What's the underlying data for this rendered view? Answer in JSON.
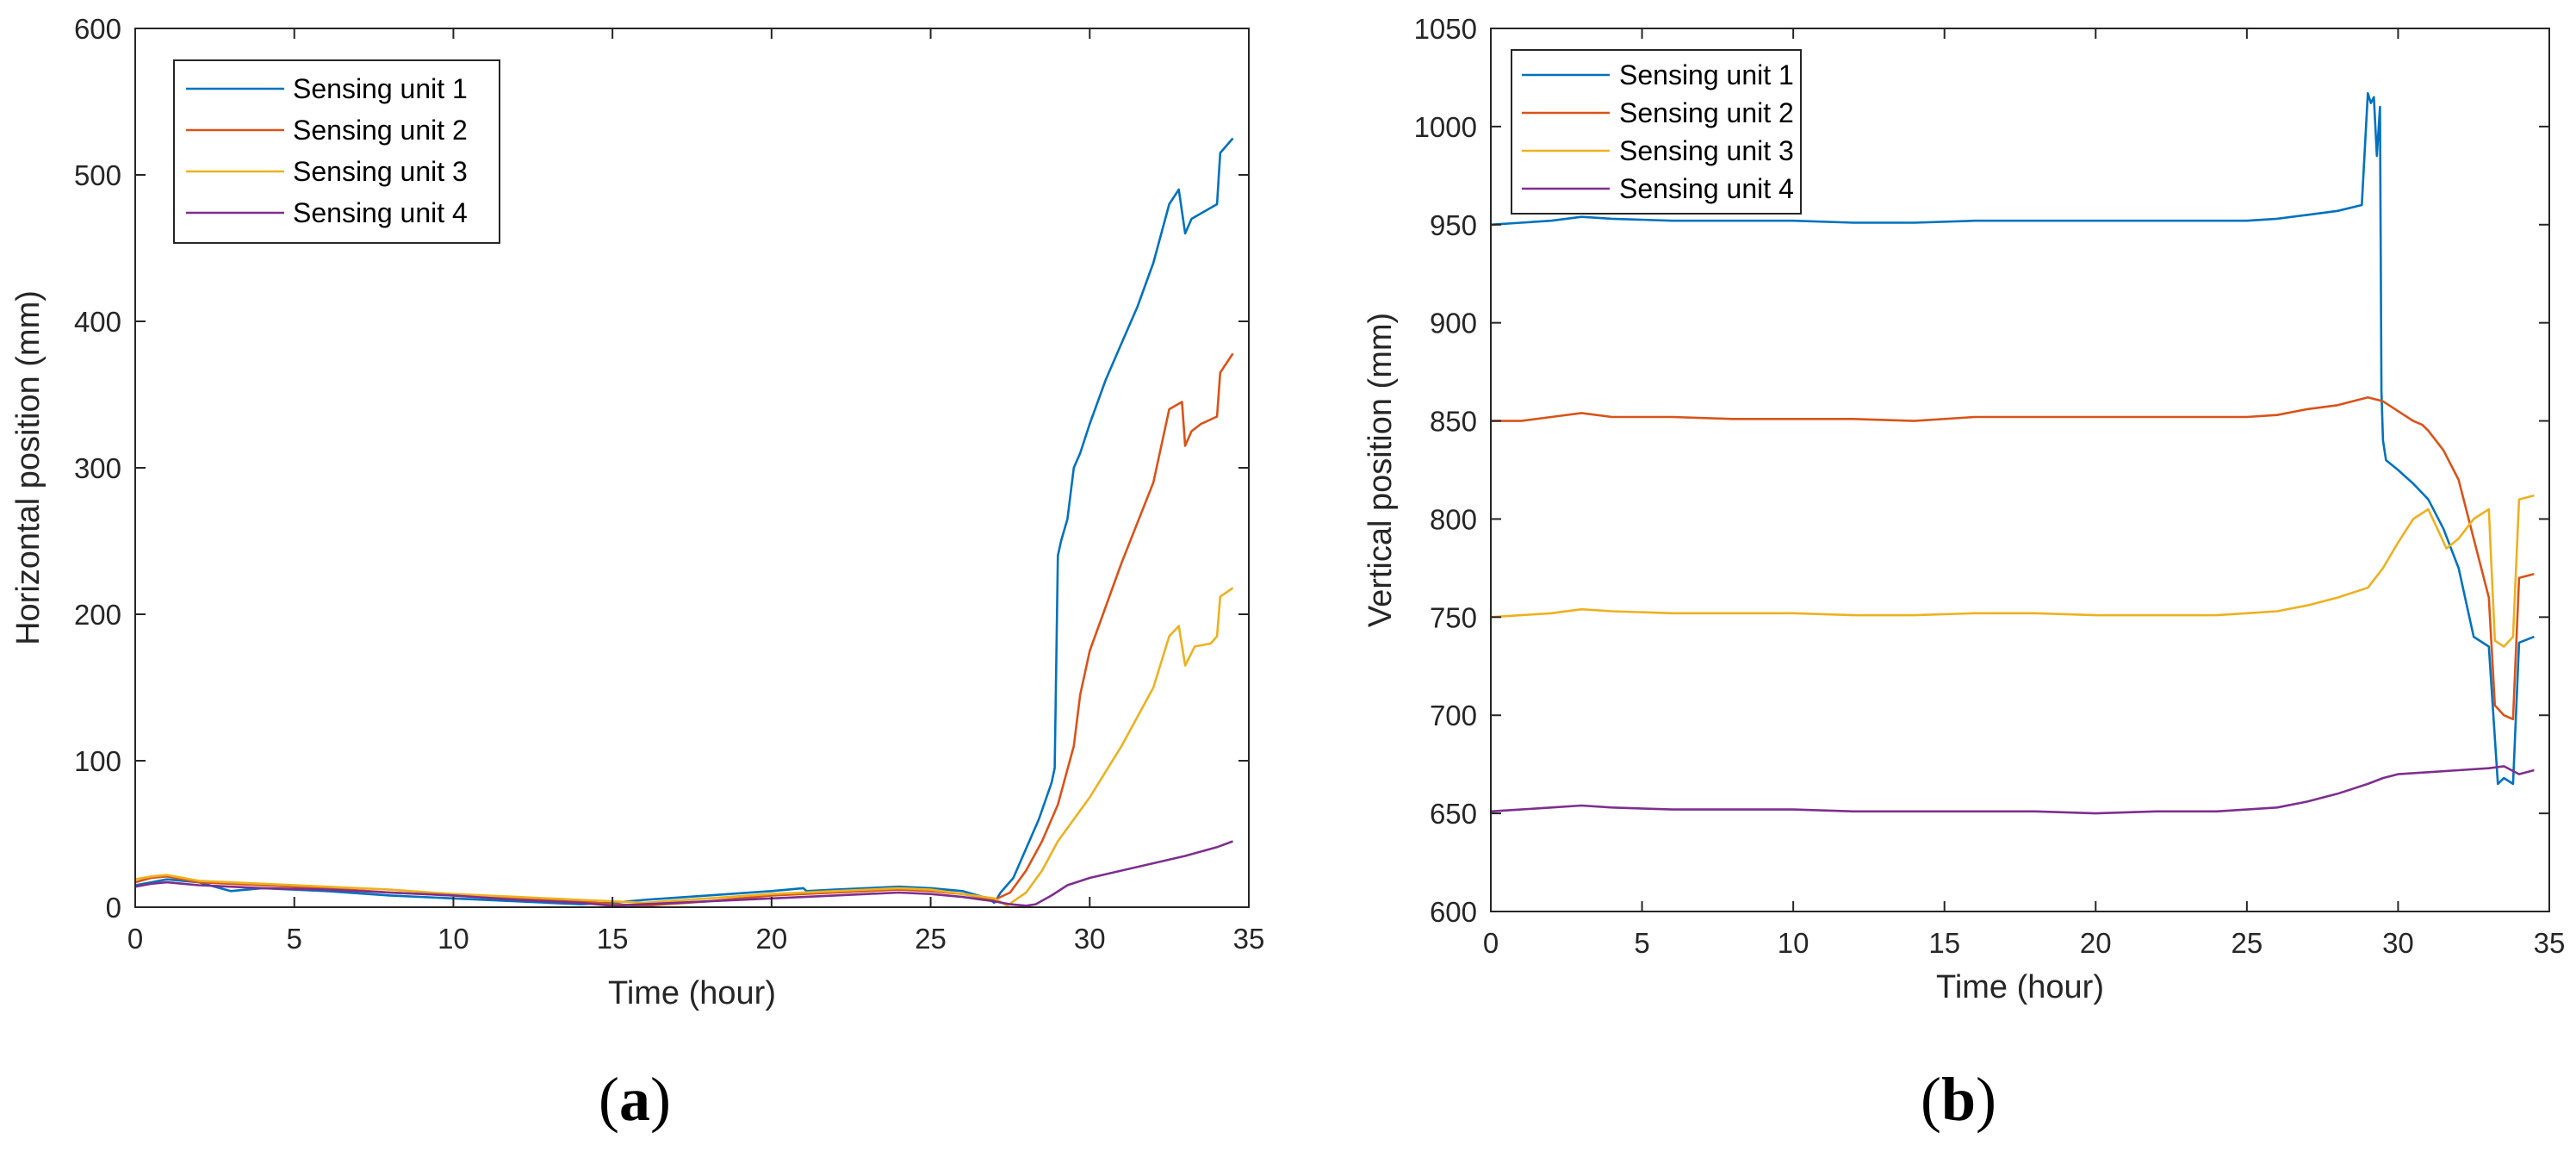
{
  "colors": {
    "unit1": "#0072BD",
    "unit2": "#D95319",
    "unit3": "#EDB120",
    "unit4": "#7E2F8E",
    "axis": "#262626"
  },
  "panel_labels": {
    "a": {
      "open": "(",
      "letter": "a",
      "close": ")"
    },
    "b": {
      "open": "(",
      "letter": "b",
      "close": ")"
    }
  },
  "chart_data": [
    {
      "type": "line",
      "panel": "a",
      "title": "",
      "xlabel": "Time (hour)",
      "ylabel": "Horizontal position (mm)",
      "xlim": [
        0,
        35
      ],
      "ylim": [
        0,
        600
      ],
      "xticks": [
        0,
        5,
        10,
        15,
        20,
        25,
        30,
        35
      ],
      "yticks": [
        0,
        100,
        200,
        300,
        400,
        500,
        600
      ],
      "legend_position": "top-left",
      "series": [
        {
          "name": "Sensing unit 1",
          "color_key": "unit1",
          "x": [
            0,
            0.5,
            1,
            1.5,
            2,
            2.5,
            3,
            4,
            6,
            8,
            10,
            12,
            14,
            15,
            16,
            18,
            20,
            21,
            21.1,
            22,
            24,
            25,
            26,
            26.8,
            27,
            27.2,
            27.6,
            28,
            28.4,
            28.8,
            28.9,
            29.0,
            29.1,
            29.3,
            29.5,
            29.7,
            30,
            30.5,
            31,
            31.5,
            32,
            32.5,
            32.8,
            33.0,
            33.2,
            33.6,
            34.0,
            34.1,
            34.5
          ],
          "y": [
            15,
            17,
            19,
            18,
            17,
            14,
            11,
            13,
            11,
            8,
            6,
            4,
            2,
            3,
            5,
            8,
            11,
            13,
            11,
            12,
            14,
            13,
            11,
            6,
            3,
            10,
            20,
            40,
            60,
            85,
            95,
            240,
            250,
            265,
            300,
            310,
            330,
            360,
            385,
            410,
            440,
            480,
            490,
            460,
            470,
            475,
            480,
            515,
            525
          ]
        },
        {
          "name": "Sensing unit 2",
          "color_key": "unit2",
          "x": [
            0,
            0.5,
            1,
            1.5,
            2,
            3,
            4,
            6,
            8,
            10,
            12,
            14,
            15,
            16,
            18,
            20,
            22,
            24,
            25,
            26,
            27,
            27.5,
            28,
            28.5,
            29,
            29.5,
            29.7,
            29.8,
            30,
            31,
            32,
            32.5,
            32.9,
            33.0,
            33.2,
            33.5,
            34,
            34.1,
            34.5
          ],
          "y": [
            17,
            20,
            21,
            19,
            17,
            16,
            15,
            13,
            10,
            8,
            6,
            4,
            2,
            1,
            4,
            8,
            10,
            12,
            11,
            9,
            5,
            10,
            25,
            45,
            70,
            110,
            145,
            155,
            175,
            235,
            290,
            340,
            345,
            315,
            325,
            330,
            335,
            365,
            378
          ]
        },
        {
          "name": "Sensing unit 3",
          "color_key": "unit3",
          "x": [
            0,
            0.5,
            1,
            1.5,
            2,
            3,
            4,
            6,
            8,
            10,
            12,
            14,
            15,
            16,
            18,
            20,
            22,
            24,
            25,
            26,
            27,
            27.4,
            28,
            28.5,
            29,
            29.5,
            30,
            31,
            32,
            32.5,
            32.8,
            33.0,
            33.3,
            33.8,
            34.0,
            34.1,
            34.5
          ],
          "y": [
            19,
            21,
            22,
            20,
            18,
            17,
            16,
            14,
            12,
            9,
            7,
            5,
            4,
            3,
            6,
            9,
            11,
            13,
            12,
            9,
            6,
            1,
            10,
            25,
            45,
            60,
            75,
            110,
            150,
            185,
            192,
            165,
            178,
            180,
            185,
            212,
            218
          ]
        },
        {
          "name": "Sensing unit 4",
          "color_key": "unit4",
          "x": [
            0,
            0.5,
            1,
            1.5,
            2,
            3,
            4,
            6,
            8,
            10,
            12,
            14,
            15,
            16,
            18,
            20,
            22,
            24,
            25,
            26,
            27,
            27.5,
            28,
            28.3,
            28.8,
            29.3,
            30,
            31,
            32,
            33,
            34,
            34.5
          ],
          "y": [
            14,
            16,
            17,
            16,
            15,
            14,
            13,
            12,
            10,
            8,
            5,
            3,
            1,
            2,
            4,
            6,
            8,
            10,
            9,
            7,
            4,
            2,
            1,
            2,
            8,
            15,
            20,
            25,
            30,
            35,
            41,
            45
          ]
        }
      ]
    },
    {
      "type": "line",
      "panel": "b",
      "title": "",
      "xlabel": "Time (hour)",
      "ylabel": "Vertical position (mm)",
      "xlim": [
        0,
        35
      ],
      "ylim": [
        600,
        1050
      ],
      "xticks": [
        0,
        5,
        10,
        15,
        20,
        25,
        30,
        35
      ],
      "yticks": [
        600,
        650,
        700,
        750,
        800,
        850,
        900,
        950,
        1000,
        1050
      ],
      "legend_position": "top-left",
      "series": [
        {
          "name": "Sensing unit 1",
          "color_key": "unit1",
          "x": [
            0,
            1,
            2,
            3,
            4,
            6,
            8,
            10,
            12,
            14,
            16,
            18,
            20,
            22,
            24,
            25,
            26,
            27,
            28,
            28.8,
            29.0,
            29.1,
            29.2,
            29.3,
            29.4,
            29.45,
            29.5,
            29.6,
            30,
            30.5,
            31,
            31.5,
            32,
            32.5,
            33.0,
            33.3,
            33.5,
            33.8,
            34.0,
            34.5
          ],
          "y": [
            950,
            951,
            952,
            954,
            953,
            952,
            952,
            952,
            951,
            951,
            952,
            952,
            952,
            952,
            952,
            952,
            953,
            955,
            957,
            960,
            1017,
            1012,
            1015,
            985,
            1010,
            865,
            840,
            830,
            825,
            818,
            810,
            795,
            775,
            740,
            735,
            665,
            668,
            665,
            737,
            740
          ]
        },
        {
          "name": "Sensing unit 2",
          "color_key": "unit2",
          "x": [
            0,
            1,
            2,
            3,
            4,
            6,
            8,
            10,
            12,
            14,
            16,
            18,
            20,
            22,
            24,
            25,
            26,
            27,
            28,
            29,
            29.5,
            30,
            30.5,
            30.8,
            31,
            31.5,
            32,
            32.5,
            33.0,
            33.2,
            33.5,
            33.8,
            34.0,
            34.5
          ],
          "y": [
            850,
            850,
            852,
            854,
            852,
            852,
            851,
            851,
            851,
            850,
            852,
            852,
            852,
            852,
            852,
            852,
            853,
            856,
            858,
            862,
            860,
            855,
            850,
            848,
            845,
            835,
            820,
            790,
            760,
            705,
            700,
            698,
            770,
            772
          ]
        },
        {
          "name": "Sensing unit 3",
          "color_key": "unit3",
          "x": [
            0,
            1,
            2,
            3,
            4,
            6,
            8,
            10,
            12,
            14,
            16,
            18,
            20,
            22,
            24,
            25,
            26,
            27,
            28,
            29,
            29.5,
            30,
            30.5,
            31,
            31.3,
            31.6,
            32,
            32.5,
            33.0,
            33.2,
            33.5,
            33.8,
            34.0,
            34.5
          ],
          "y": [
            750,
            751,
            752,
            754,
            753,
            752,
            752,
            752,
            751,
            751,
            752,
            752,
            751,
            751,
            751,
            752,
            753,
            756,
            760,
            765,
            775,
            788,
            800,
            805,
            795,
            785,
            790,
            800,
            805,
            738,
            735,
            740,
            810,
            812
          ]
        },
        {
          "name": "Sensing unit 4",
          "color_key": "unit4",
          "x": [
            0,
            1,
            2,
            3,
            4,
            6,
            8,
            10,
            12,
            14,
            16,
            18,
            20,
            22,
            24,
            25,
            26,
            27,
            28,
            29,
            29.5,
            30,
            31,
            32,
            33,
            33.5,
            34,
            34.5
          ],
          "y": [
            651,
            652,
            653,
            654,
            653,
            652,
            652,
            652,
            651,
            651,
            651,
            651,
            650,
            651,
            651,
            652,
            653,
            656,
            660,
            665,
            668,
            670,
            671,
            672,
            673,
            674,
            670,
            672
          ]
        }
      ]
    }
  ]
}
